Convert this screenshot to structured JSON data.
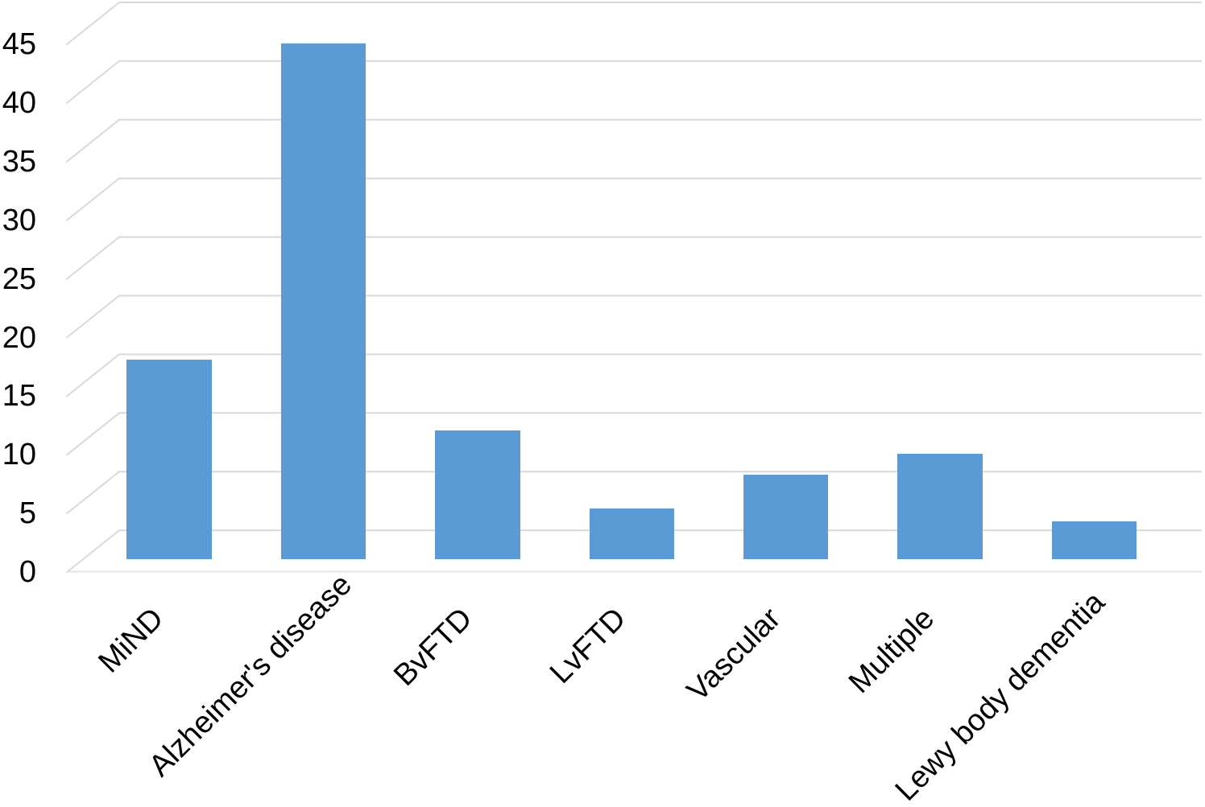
{
  "chart_data": {
    "type": "bar",
    "title": "",
    "xlabel": "",
    "ylabel": "",
    "categories": [
      "MiND",
      "Alzheimer's disease",
      "BvFTD",
      "LvFTD",
      "Vascular",
      "Multiple",
      "Lewy body dementia"
    ],
    "values": [
      17,
      44,
      11,
      4.3,
      7.2,
      9,
      3.2
    ],
    "yticks": [
      45,
      40,
      35,
      30,
      25,
      20,
      15,
      10,
      5,
      0
    ],
    "ylim": [
      0,
      45
    ],
    "grid": true,
    "legend_position": "none",
    "bar_color": "#5B9BD5",
    "gridline_color": "#D9D9D9",
    "front_edge_color": "#E3E3E3",
    "text_color": "#000000",
    "background_color": "#FFFFFF",
    "style": "pseudo-3d offset gridlines: each horizontal gridline joined to its axis label by a short diagonal connector; x labels rotated 45 degrees"
  }
}
